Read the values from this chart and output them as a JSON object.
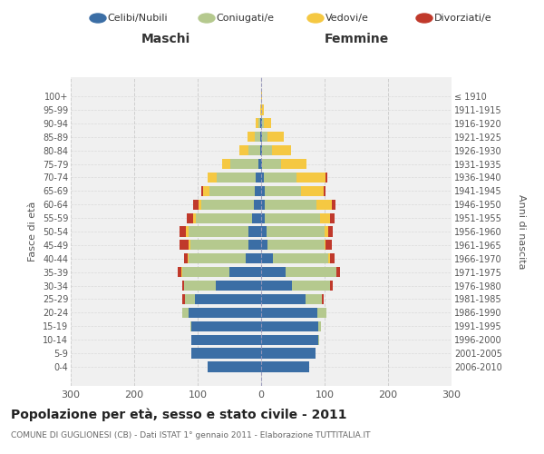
{
  "age_groups": [
    "0-4",
    "5-9",
    "10-14",
    "15-19",
    "20-24",
    "25-29",
    "30-34",
    "35-39",
    "40-44",
    "45-49",
    "50-54",
    "55-59",
    "60-64",
    "65-69",
    "70-74",
    "75-79",
    "80-84",
    "85-89",
    "90-94",
    "95-99",
    "100+"
  ],
  "birth_years": [
    "2006-2010",
    "2001-2005",
    "1996-2000",
    "1991-1995",
    "1986-1990",
    "1981-1985",
    "1976-1980",
    "1971-1975",
    "1966-1970",
    "1961-1965",
    "1956-1960",
    "1951-1955",
    "1946-1950",
    "1941-1945",
    "1936-1940",
    "1931-1935",
    "1926-1930",
    "1921-1925",
    "1916-1920",
    "1911-1915",
    "≤ 1910"
  ],
  "male_celibi": [
    85,
    110,
    110,
    110,
    115,
    105,
    72,
    50,
    25,
    20,
    20,
    15,
    12,
    10,
    8,
    4,
    2,
    2,
    1,
    0,
    0
  ],
  "male_coniugati": [
    0,
    0,
    0,
    2,
    10,
    15,
    50,
    75,
    90,
    92,
    95,
    88,
    82,
    72,
    62,
    45,
    18,
    8,
    3,
    0,
    0
  ],
  "male_vedovi": [
    0,
    0,
    0,
    0,
    0,
    0,
    0,
    1,
    1,
    2,
    3,
    4,
    5,
    10,
    15,
    12,
    14,
    12,
    5,
    2,
    0
  ],
  "male_divorziati": [
    0,
    0,
    0,
    0,
    0,
    5,
    2,
    5,
    5,
    14,
    10,
    10,
    8,
    3,
    0,
    0,
    0,
    0,
    0,
    0,
    0
  ],
  "female_celibi": [
    75,
    85,
    90,
    90,
    88,
    70,
    48,
    38,
    18,
    10,
    8,
    5,
    5,
    5,
    4,
    2,
    2,
    2,
    1,
    0,
    0
  ],
  "female_coniugati": [
    0,
    0,
    2,
    4,
    15,
    25,
    60,
    80,
    88,
    90,
    92,
    88,
    82,
    58,
    52,
    30,
    15,
    8,
    3,
    0,
    0
  ],
  "female_vedovi": [
    0,
    0,
    0,
    0,
    0,
    0,
    0,
    1,
    2,
    2,
    5,
    15,
    25,
    35,
    45,
    40,
    30,
    25,
    12,
    4,
    2
  ],
  "female_divorziati": [
    0,
    0,
    0,
    0,
    0,
    3,
    5,
    5,
    8,
    10,
    8,
    8,
    5,
    3,
    3,
    0,
    0,
    0,
    0,
    0,
    0
  ],
  "color_celibi": "#3b6ea5",
  "color_coniugati": "#b5c98e",
  "color_vedovi": "#f5c842",
  "color_divorziati": "#c0392b",
  "title_main": "Popolazione per età, sesso e stato civile - 2011",
  "title_sub": "COMUNE DI GUGLIONESI (CB) - Dati ISTAT 1° gennaio 2011 - Elaborazione TUTTITALIA.IT",
  "xlabel_left": "Maschi",
  "xlabel_right": "Femmine",
  "ylabel_left": "Fasce di età",
  "ylabel_right": "Anni di nascita",
  "legend_labels": [
    "Celibi/Nubili",
    "Coniugati/e",
    "Vedovi/e",
    "Divorziati/e"
  ],
  "xlim": 300,
  "background_color": "#ffffff",
  "plot_bg": "#f0f0f0",
  "grid_color": "#cccccc"
}
